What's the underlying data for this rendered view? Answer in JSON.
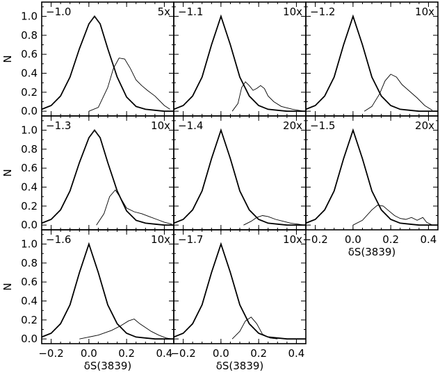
{
  "chart_data": {
    "type": "line",
    "xlabel": "δS(3839)",
    "ylabel": "N",
    "xlim": [
      -0.25,
      0.45
    ],
    "ylim": [
      -0.05,
      1.15
    ],
    "xticks": [
      -0.2,
      0.0,
      0.2,
      0.4
    ],
    "xtick_labels": [
      "−0.2",
      "0.0",
      "0.2",
      "0.4"
    ],
    "yticks": [
      0.0,
      0.2,
      0.4,
      0.6,
      0.8,
      1.0
    ],
    "ytick_labels": [
      "0.0",
      "0.2",
      "0.4",
      "0.6",
      "0.8",
      "1.0"
    ],
    "grid": false,
    "panels": [
      {
        "label": "−1.0",
        "scale": "5x",
        "series": [
          {
            "x": [
              -0.25,
              -0.2,
              -0.15,
              -0.1,
              -0.05,
              0,
              0.03,
              0.06,
              0.1,
              0.15,
              0.2,
              0.25,
              0.3,
              0.35,
              0.4,
              0.45
            ],
            "values": [
              0.02,
              0.06,
              0.16,
              0.36,
              0.66,
              0.92,
              1.0,
              0.92,
              0.66,
              0.36,
              0.15,
              0.05,
              0.02,
              0.01,
              0.0,
              0.0
            ]
          },
          {
            "x": [
              0.0,
              0.05,
              0.1,
              0.13,
              0.16,
              0.19,
              0.22,
              0.25,
              0.28,
              0.31,
              0.35,
              0.4,
              0.43
            ],
            "values": [
              0.0,
              0.04,
              0.25,
              0.45,
              0.56,
              0.55,
              0.45,
              0.33,
              0.27,
              0.22,
              0.16,
              0.06,
              0.02
            ]
          }
        ]
      },
      {
        "label": "−1.1",
        "scale": "10x",
        "series": [
          {
            "x": [
              -0.25,
              -0.2,
              -0.15,
              -0.1,
              -0.05,
              0,
              0.05,
              0.1,
              0.15,
              0.2,
              0.25,
              0.3,
              0.35,
              0.4,
              0.45
            ],
            "values": [
              0.02,
              0.06,
              0.16,
              0.36,
              0.7,
              1.0,
              0.7,
              0.36,
              0.16,
              0.06,
              0.02,
              0.01,
              0.0,
              0.0,
              0.0
            ]
          },
          {
            "x": [
              0.06,
              0.09,
              0.11,
              0.13,
              0.15,
              0.17,
              0.19,
              0.21,
              0.23,
              0.25,
              0.28,
              0.32,
              0.38,
              0.44
            ],
            "values": [
              0.0,
              0.08,
              0.25,
              0.31,
              0.27,
              0.22,
              0.24,
              0.27,
              0.24,
              0.16,
              0.1,
              0.05,
              0.02,
              0.0
            ]
          }
        ]
      },
      {
        "label": "−1.2",
        "scale": "10x",
        "series": [
          {
            "x": [
              -0.25,
              -0.2,
              -0.15,
              -0.1,
              -0.05,
              0,
              0.05,
              0.1,
              0.15,
              0.2,
              0.25,
              0.3,
              0.35,
              0.4,
              0.45
            ],
            "values": [
              0.02,
              0.06,
              0.16,
              0.36,
              0.7,
              1.0,
              0.7,
              0.36,
              0.16,
              0.06,
              0.02,
              0.01,
              0.0,
              0.0,
              0.0
            ]
          },
          {
            "x": [
              0.06,
              0.1,
              0.14,
              0.17,
              0.2,
              0.23,
              0.26,
              0.3,
              0.34,
              0.38,
              0.42
            ],
            "values": [
              0.0,
              0.05,
              0.18,
              0.32,
              0.39,
              0.36,
              0.28,
              0.21,
              0.14,
              0.06,
              0.01
            ]
          }
        ]
      },
      {
        "label": "−1.3",
        "scale": "10x",
        "series": [
          {
            "x": [
              -0.25,
              -0.2,
              -0.15,
              -0.1,
              -0.05,
              0,
              0.03,
              0.06,
              0.1,
              0.15,
              0.2,
              0.25,
              0.3,
              0.35,
              0.4,
              0.45
            ],
            "values": [
              0.02,
              0.06,
              0.16,
              0.36,
              0.66,
              0.92,
              1.0,
              0.92,
              0.66,
              0.36,
              0.15,
              0.05,
              0.02,
              0.01,
              0.0,
              0.0
            ]
          },
          {
            "x": [
              0.04,
              0.08,
              0.11,
              0.14,
              0.17,
              0.2,
              0.24,
              0.28,
              0.32,
              0.36,
              0.4,
              0.44
            ],
            "values": [
              0.0,
              0.12,
              0.3,
              0.37,
              0.28,
              0.18,
              0.14,
              0.12,
              0.09,
              0.06,
              0.03,
              0.01
            ]
          }
        ]
      },
      {
        "label": "−1.4",
        "scale": "20x",
        "series": [
          {
            "x": [
              -0.25,
              -0.2,
              -0.15,
              -0.1,
              -0.05,
              0,
              0.05,
              0.1,
              0.15,
              0.2,
              0.25,
              0.3,
              0.35,
              0.4,
              0.45
            ],
            "values": [
              0.02,
              0.06,
              0.16,
              0.36,
              0.7,
              1.0,
              0.7,
              0.36,
              0.16,
              0.06,
              0.02,
              0.01,
              0.0,
              0.0,
              0.0
            ]
          },
          {
            "x": [
              0.12,
              0.16,
              0.19,
              0.22,
              0.25,
              0.29,
              0.33,
              0.37,
              0.41,
              0.44
            ],
            "values": [
              0.0,
              0.04,
              0.08,
              0.1,
              0.09,
              0.06,
              0.04,
              0.02,
              0.01,
              0.0
            ]
          }
        ]
      },
      {
        "label": "−1.5",
        "scale": "20x",
        "series": [
          {
            "x": [
              -0.25,
              -0.2,
              -0.15,
              -0.1,
              -0.05,
              0,
              0.05,
              0.1,
              0.15,
              0.2,
              0.25,
              0.3,
              0.35,
              0.4,
              0.45
            ],
            "values": [
              0.02,
              0.06,
              0.16,
              0.36,
              0.7,
              1.0,
              0.7,
              0.36,
              0.16,
              0.06,
              0.02,
              0.01,
              0.0,
              0.0,
              0.0
            ]
          },
          {
            "x": [
              0.0,
              0.05,
              0.1,
              0.13,
              0.16,
              0.19,
              0.22,
              0.25,
              0.28,
              0.31,
              0.34,
              0.37,
              0.39,
              0.42
            ],
            "values": [
              0.0,
              0.05,
              0.16,
              0.21,
              0.2,
              0.15,
              0.1,
              0.07,
              0.06,
              0.08,
              0.05,
              0.08,
              0.03,
              0.0
            ]
          }
        ]
      },
      {
        "label": "−1.6",
        "scale": "10x",
        "series": [
          {
            "x": [
              -0.25,
              -0.2,
              -0.15,
              -0.1,
              -0.05,
              0,
              0.05,
              0.1,
              0.15,
              0.2,
              0.25,
              0.3,
              0.35,
              0.4,
              0.45
            ],
            "values": [
              0.02,
              0.06,
              0.16,
              0.36,
              0.7,
              1.0,
              0.7,
              0.36,
              0.16,
              0.06,
              0.02,
              0.01,
              0.0,
              0.0,
              0.0
            ]
          },
          {
            "x": [
              -0.05,
              0.05,
              0.12,
              0.17,
              0.21,
              0.24,
              0.27,
              0.3,
              0.33,
              0.37,
              0.41,
              0.44
            ],
            "values": [
              0.0,
              0.04,
              0.09,
              0.14,
              0.19,
              0.21,
              0.16,
              0.12,
              0.08,
              0.04,
              0.01,
              0.0
            ]
          }
        ]
      },
      {
        "label": "−1.7",
        "scale": "10x",
        "series": [
          {
            "x": [
              -0.25,
              -0.2,
              -0.15,
              -0.1,
              -0.05,
              0,
              0.05,
              0.1,
              0.15,
              0.2,
              0.25,
              0.3,
              0.35,
              0.4,
              0.45
            ],
            "values": [
              0.02,
              0.06,
              0.16,
              0.36,
              0.7,
              1.0,
              0.7,
              0.36,
              0.16,
              0.06,
              0.02,
              0.01,
              0.0,
              0.0,
              0.0
            ]
          },
          {
            "x": [
              0.06,
              0.1,
              0.13,
              0.16,
              0.19,
              0.22,
              0.26,
              0.3
            ],
            "values": [
              0.0,
              0.08,
              0.19,
              0.23,
              0.16,
              0.05,
              0.01,
              0.0
            ]
          }
        ]
      }
    ]
  }
}
